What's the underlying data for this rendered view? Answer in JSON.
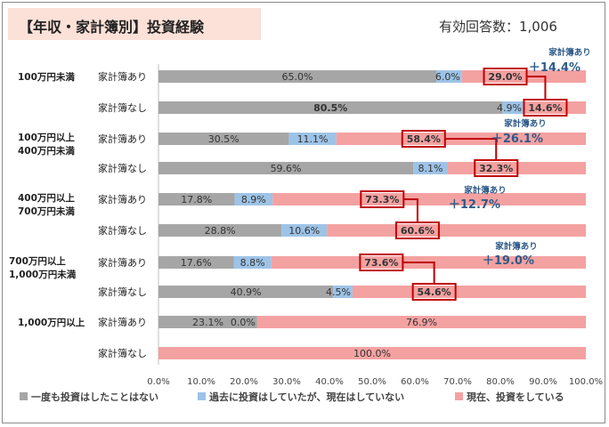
{
  "header": {
    "title": "【年収・家計簿別】投資経験",
    "respondents": "有効回答数：1,006"
  },
  "chart_data": {
    "type": "bar",
    "orientation": "horizontal",
    "stacked": true,
    "title": "【年収・家計簿別】投資経験",
    "xlim": [
      0,
      100
    ],
    "x_ticks": [
      "0.0%",
      "10.0%",
      "20.0%",
      "30.0%",
      "40.0%",
      "50.0%",
      "60.0%",
      "70.0%",
      "80.0%",
      "90.0%",
      "100.0%"
    ],
    "legend_position": "bottom",
    "colors": [
      "#a6a6a6",
      "#9dc3e6",
      "#f4a1a1"
    ],
    "series_names": [
      "一度も投資はしたことはない",
      "過去に投資はしていたが、現在はしていない",
      "現在、投資をしている"
    ],
    "groups": [
      {
        "name": "100万円未満",
        "rows": [
          {
            "label": "家計簿あり",
            "values": [
              65.0,
              6.0,
              29.0
            ],
            "texts": [
              "65.0%",
              "6.0%",
              "29.0%"
            ],
            "bold": [
              false,
              false,
              true
            ],
            "boxed": true
          },
          {
            "label": "家計簿なし",
            "values": [
              80.5,
              4.9,
              14.6
            ],
            "texts": [
              "80.5%",
              "4.9%",
              "14.6%"
            ],
            "bold": [
              true,
              false,
              true
            ],
            "boxed": true
          }
        ]
      },
      {
        "name": "100万円以上 400万円未満",
        "name_lines": [
          "100万円以上",
          "400万円未満"
        ],
        "rows": [
          {
            "label": "家計簿あり",
            "values": [
              30.5,
              11.1,
              58.4
            ],
            "texts": [
              "30.5%",
              "11.1%",
              "58.4%"
            ],
            "bold": [
              false,
              false,
              true
            ],
            "boxed": true
          },
          {
            "label": "家計簿なし",
            "values": [
              59.6,
              8.1,
              32.3
            ],
            "texts": [
              "59.6%",
              "8.1%",
              "32.3%"
            ],
            "bold": [
              false,
              false,
              true
            ],
            "boxed": true
          }
        ]
      },
      {
        "name": "400万円以上 700万円未満",
        "name_lines": [
          "400万円以上",
          "700万円未満"
        ],
        "rows": [
          {
            "label": "家計簿あり",
            "values": [
              17.8,
              8.9,
              73.3
            ],
            "texts": [
              "17.8%",
              "8.9%",
              "73.3%"
            ],
            "bold": [
              false,
              false,
              true
            ],
            "boxed": true
          },
          {
            "label": "家計簿なし",
            "values": [
              28.8,
              10.6,
              60.6
            ],
            "texts": [
              "28.8%",
              "10.6%",
              "60.6%"
            ],
            "bold": [
              false,
              false,
              true
            ],
            "boxed": true
          }
        ]
      },
      {
        "name": "700万円以上 1,000万円未満",
        "name_lines": [
          "700万円以上",
          "1,000万円未満"
        ],
        "rows": [
          {
            "label": "家計簿あり",
            "values": [
              17.6,
              8.8,
              73.6
            ],
            "texts": [
              "17.6%",
              "8.8%",
              "73.6%"
            ],
            "bold": [
              false,
              false,
              true
            ],
            "boxed": true
          },
          {
            "label": "家計簿なし",
            "values": [
              40.9,
              4.5,
              54.6
            ],
            "texts": [
              "40.9%",
              "4.5%",
              "54.6%"
            ],
            "bold": [
              false,
              false,
              true
            ],
            "boxed": true
          }
        ]
      },
      {
        "name": "1,000万円以上",
        "name_lines": [
          "1,000万円以上"
        ],
        "rows": [
          {
            "label": "家計簿あり",
            "values": [
              23.1,
              0.0,
              76.9
            ],
            "texts": [
              "23.1%",
              "0.0%",
              "76.9%"
            ],
            "bold": [
              false,
              false,
              false
            ],
            "boxed": false
          },
          {
            "label": "家計簿なし",
            "values": [
              0,
              0,
              100.0
            ],
            "texts": [
              "",
              "",
              "100.0%"
            ],
            "bold": [
              false,
              false,
              false
            ],
            "boxed": false
          }
        ]
      }
    ],
    "annotations": [
      {
        "group": 0,
        "label": "家計簿あり",
        "value": "＋14.4%"
      },
      {
        "group": 1,
        "label": "家計簿あり",
        "value": "＋26.1%"
      },
      {
        "group": 2,
        "label": "家計簿あり",
        "value": "＋12.7%"
      },
      {
        "group": 3,
        "label": "家計簿あり",
        "value": "＋19.0%"
      }
    ]
  }
}
